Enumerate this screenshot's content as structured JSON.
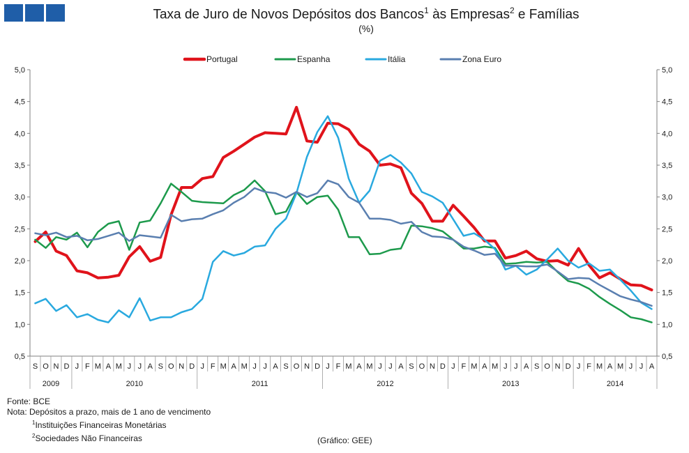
{
  "header": {
    "title_pre": "Taxa de Juro de Novos Depósitos dos Bancos",
    "sup1": "1",
    "title_mid": " às Empresas",
    "sup2": "2",
    "title_post": " e Famílias",
    "subtitle": "(%)"
  },
  "chart_data": {
    "type": "line",
    "title": "Taxa de Juro de Novos Depósitos dos Bancos às Empresas e Famílias",
    "ylabel": "%",
    "ylim": [
      0.5,
      5.0
    ],
    "yticks": [
      0.5,
      1.0,
      1.5,
      2.0,
      2.5,
      3.0,
      3.5,
      4.0,
      4.5,
      5.0
    ],
    "ytick_labels": [
      "0,5",
      "1,0",
      "1,5",
      "2,0",
      "2,5",
      "3,0",
      "3,5",
      "4,0",
      "4,5",
      "5,0"
    ],
    "legend_position": "top",
    "x_month_labels": [
      "S",
      "O",
      "N",
      "D",
      "J",
      "F",
      "M",
      "A",
      "M",
      "J",
      "J",
      "A",
      "S",
      "O",
      "N",
      "D",
      "J",
      "F",
      "M",
      "A",
      "M",
      "J",
      "J",
      "A",
      "S",
      "O",
      "N",
      "D",
      "J",
      "F",
      "M",
      "A",
      "M",
      "J",
      "J",
      "A",
      "S",
      "O",
      "N",
      "D",
      "J",
      "F",
      "M",
      "A",
      "M",
      "J",
      "J",
      "A",
      "S",
      "O",
      "N",
      "D",
      "J",
      "F",
      "M",
      "A",
      "M",
      "J",
      "J",
      "A"
    ],
    "x_year_labels": [
      {
        "label": "2009",
        "start": 0,
        "count": 4
      },
      {
        "label": "2010",
        "start": 4,
        "count": 12
      },
      {
        "label": "2011",
        "start": 16,
        "count": 12
      },
      {
        "label": "2012",
        "start": 28,
        "count": 12
      },
      {
        "label": "2013",
        "start": 40,
        "count": 12
      },
      {
        "label": "2014",
        "start": 52,
        "count": 8
      }
    ],
    "series": [
      {
        "name": "Portugal",
        "color": "#e0131b",
        "width": 4,
        "values": [
          2.3,
          2.45,
          2.15,
          2.08,
          1.84,
          1.81,
          1.73,
          1.74,
          1.77,
          2.06,
          2.22,
          1.99,
          2.05,
          2.72,
          3.15,
          3.15,
          3.29,
          3.32,
          3.62,
          3.72,
          3.83,
          3.94,
          4.01,
          4.0,
          3.99,
          4.41,
          3.88,
          3.86,
          4.16,
          4.15,
          4.06,
          3.83,
          3.72,
          3.5,
          3.52,
          3.46,
          3.06,
          2.9,
          2.62,
          2.62,
          2.87,
          2.7,
          2.52,
          2.31,
          2.31,
          2.04,
          2.08,
          2.15,
          2.03,
          1.99,
          2.0,
          1.93,
          2.19,
          1.93,
          1.73,
          1.81,
          1.71,
          1.62,
          1.61,
          1.54
        ]
      },
      {
        "name": "Espanha",
        "color": "#1d9a4c",
        "width": 2.5,
        "values": [
          2.33,
          2.2,
          2.37,
          2.33,
          2.44,
          2.21,
          2.45,
          2.58,
          2.62,
          2.17,
          2.6,
          2.63,
          2.9,
          3.21,
          3.08,
          2.94,
          2.92,
          2.91,
          2.9,
          3.03,
          3.11,
          3.26,
          3.09,
          2.73,
          2.77,
          3.08,
          2.89,
          3.0,
          3.02,
          2.8,
          2.37,
          2.37,
          2.1,
          2.11,
          2.17,
          2.19,
          2.55,
          2.54,
          2.51,
          2.46,
          2.33,
          2.19,
          2.19,
          2.22,
          2.2,
          1.95,
          1.96,
          1.98,
          1.97,
          1.98,
          1.82,
          1.68,
          1.64,
          1.56,
          1.43,
          1.32,
          1.22,
          1.11,
          1.08,
          1.03
        ]
      },
      {
        "name": "Itália",
        "color": "#29a9df",
        "width": 2.5,
        "values": [
          1.33,
          1.4,
          1.21,
          1.3,
          1.11,
          1.16,
          1.07,
          1.03,
          1.22,
          1.11,
          1.41,
          1.06,
          1.11,
          1.11,
          1.19,
          1.24,
          1.4,
          1.98,
          2.15,
          2.08,
          2.12,
          2.22,
          2.24,
          2.5,
          2.66,
          3.06,
          3.63,
          4.02,
          4.27,
          3.93,
          3.29,
          2.91,
          3.1,
          3.57,
          3.66,
          3.54,
          3.37,
          3.08,
          3.01,
          2.91,
          2.65,
          2.39,
          2.43,
          2.33,
          2.18,
          1.86,
          1.92,
          1.78,
          1.86,
          2.02,
          2.19,
          2.0,
          1.89,
          1.96,
          1.84,
          1.86,
          1.7,
          1.53,
          1.34,
          1.24
        ]
      },
      {
        "name": "Zona Euro",
        "color": "#5a7fb0",
        "width": 2.5,
        "values": [
          2.43,
          2.4,
          2.44,
          2.37,
          2.39,
          2.32,
          2.34,
          2.39,
          2.44,
          2.31,
          2.4,
          2.38,
          2.36,
          2.72,
          2.62,
          2.65,
          2.66,
          2.73,
          2.79,
          2.91,
          3.0,
          3.14,
          3.08,
          3.06,
          2.99,
          3.08,
          3.0,
          3.06,
          3.26,
          3.2,
          3.0,
          2.91,
          2.66,
          2.66,
          2.64,
          2.58,
          2.61,
          2.45,
          2.38,
          2.37,
          2.33,
          2.22,
          2.16,
          2.09,
          2.11,
          1.92,
          1.92,
          1.91,
          1.91,
          1.94,
          1.83,
          1.71,
          1.73,
          1.72,
          1.62,
          1.53,
          1.44,
          1.39,
          1.35,
          1.29
        ]
      }
    ]
  },
  "notes": {
    "source": "Fonte: BCE",
    "note": "Nota: Depósitos a prazo, mais de 1 ano de vencimento",
    "fn1_sup": "1",
    "fn1": "Instituições Financeiras Monetárias",
    "fn2_sup": "2",
    "fn2": "Sociedades Não Financeiras",
    "credit": "(Gráfico: GEE)"
  }
}
